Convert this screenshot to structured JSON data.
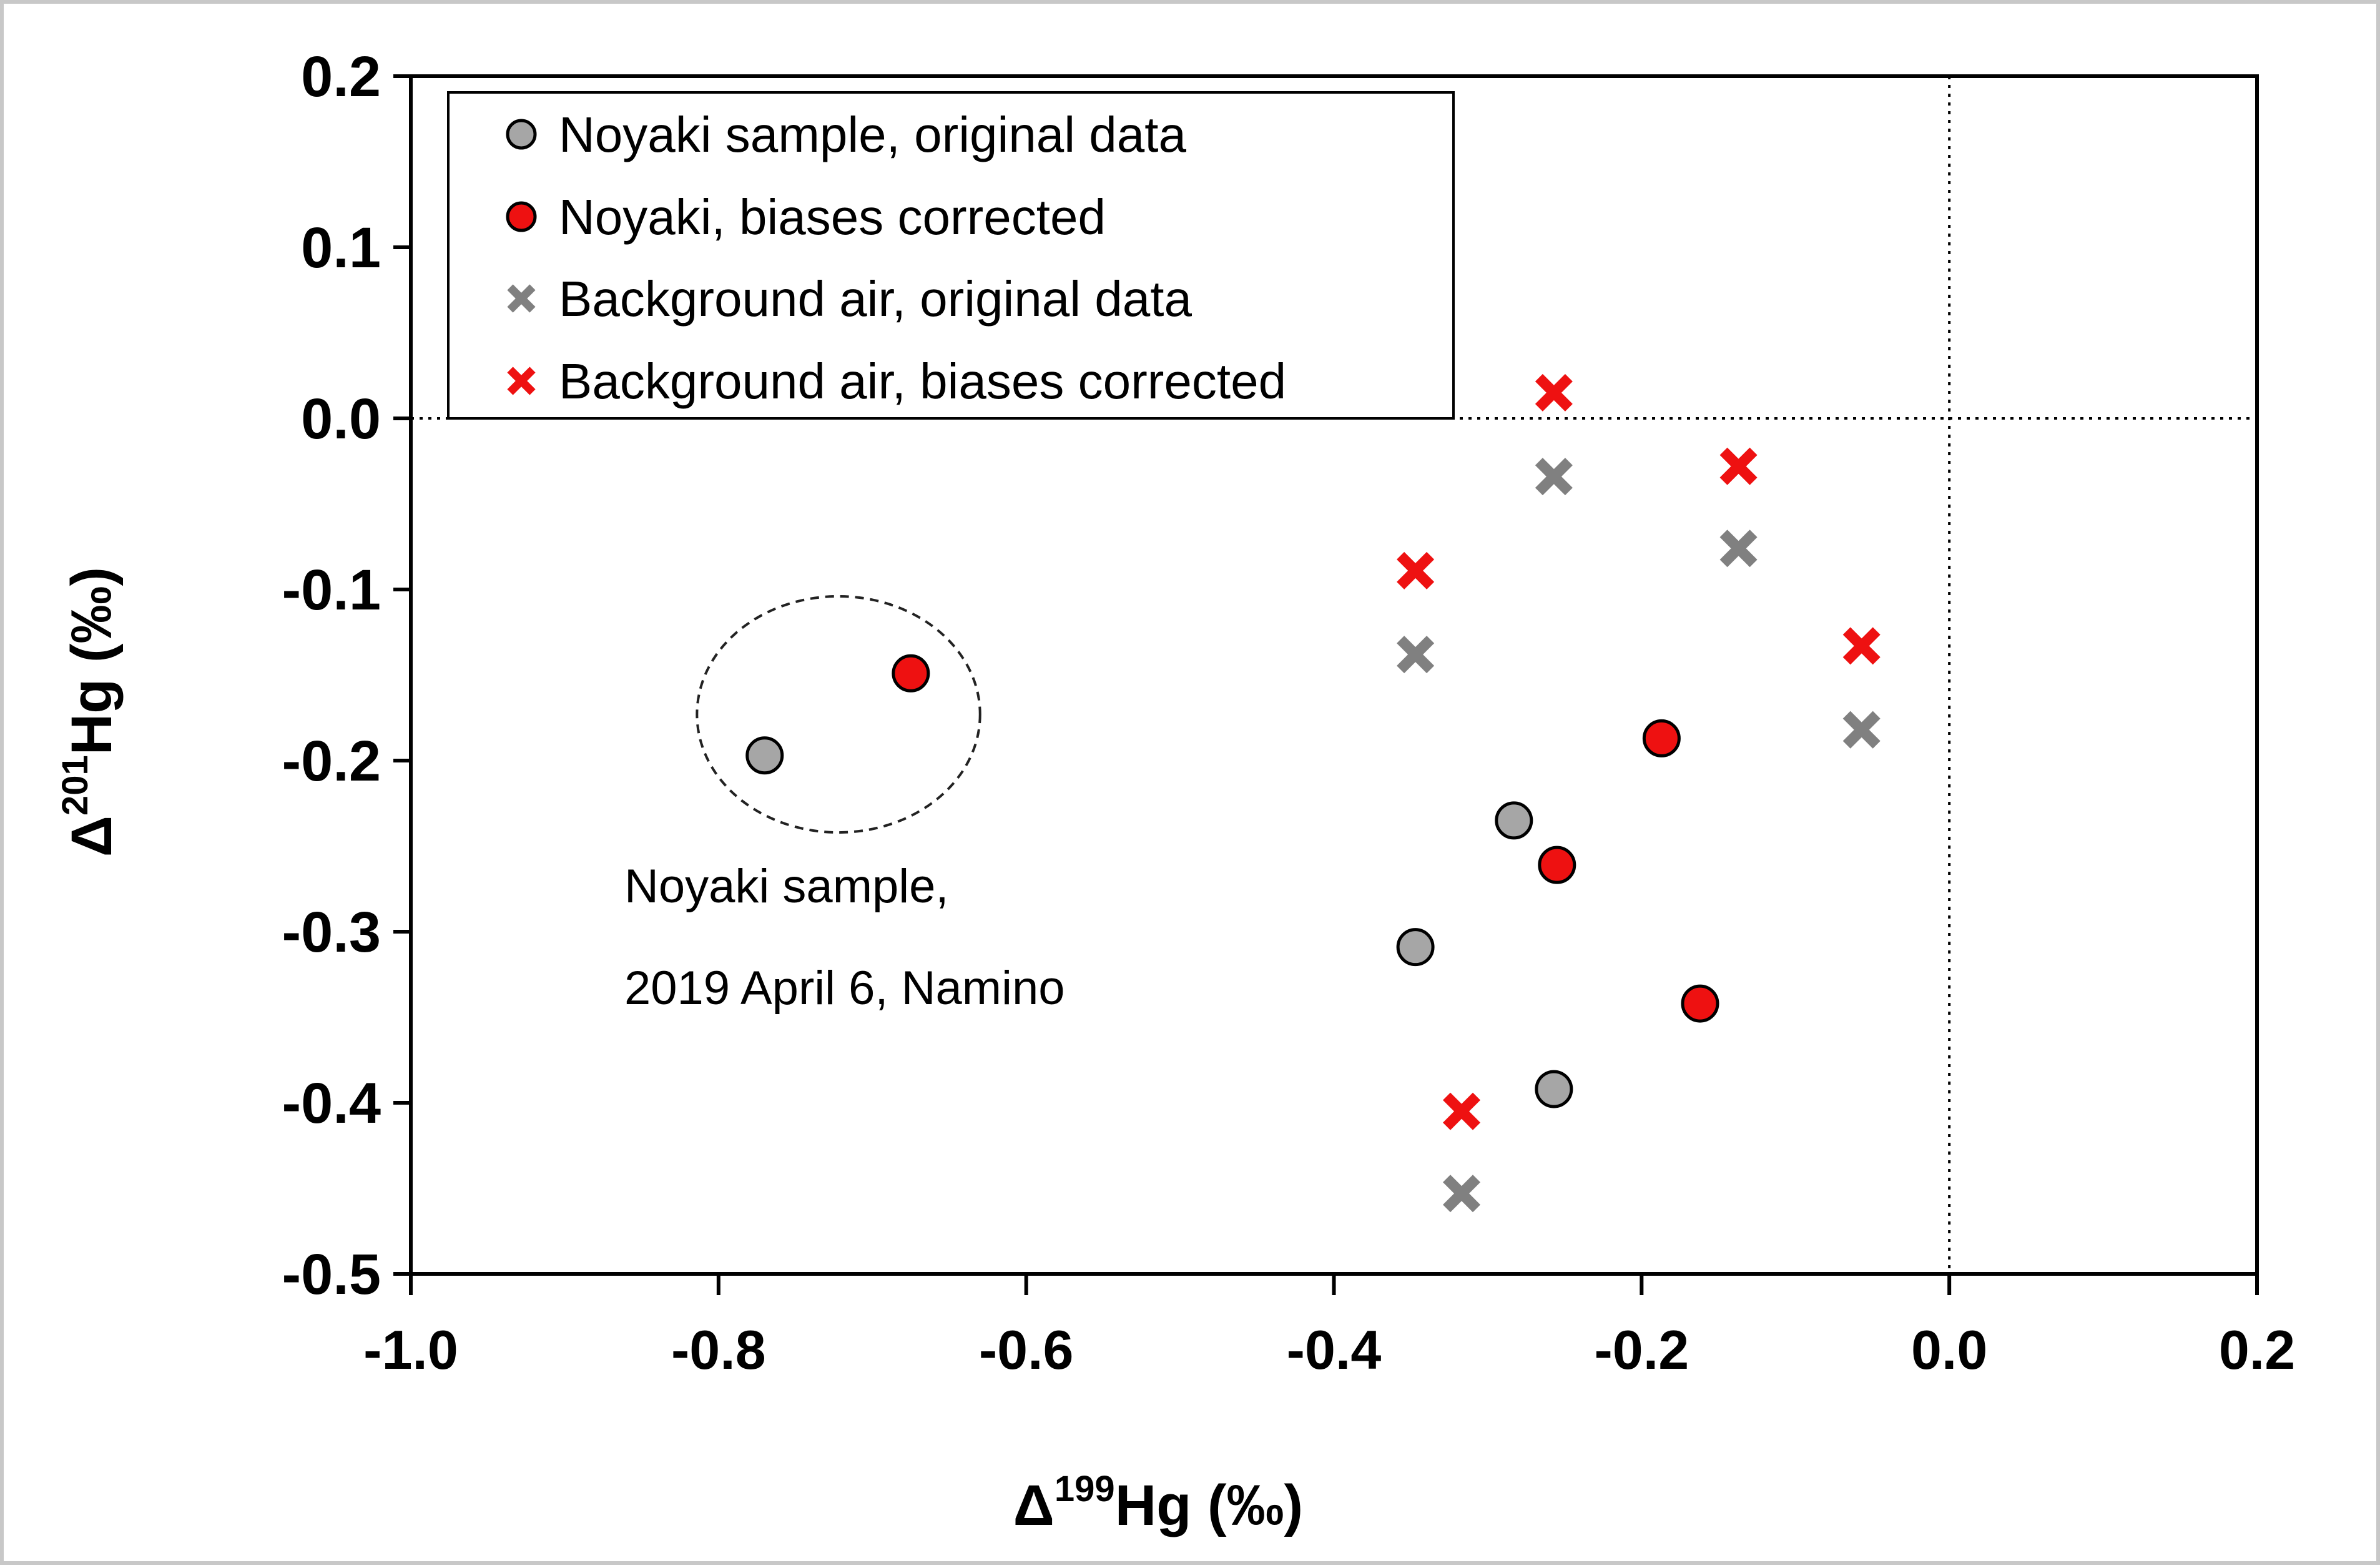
{
  "chart_data": {
    "type": "scatter",
    "title": "",
    "xlabel": {
      "prefix": "Δ",
      "superscript": "199",
      "main": "Hg (‰)"
    },
    "ylabel": {
      "prefix": "Δ",
      "superscript": "201",
      "main": "Hg (‰)"
    },
    "xlim": [
      -1.0,
      0.2
    ],
    "ylim": [
      -0.5,
      0.2
    ],
    "x_ticks": [
      -1.0,
      -0.8,
      -0.6,
      -0.4,
      -0.2,
      0.0,
      0.2
    ],
    "x_tick_labels": [
      "-1.0",
      "-0.8",
      "-0.6",
      "-0.4",
      "-0.2",
      "0.0",
      "0.2"
    ],
    "y_ticks": [
      0.2,
      0.1,
      0.0,
      -0.1,
      -0.2,
      -0.3,
      -0.4,
      -0.5
    ],
    "y_tick_labels": [
      "0.2",
      "0.1",
      "0.0",
      "-0.1",
      "-0.2",
      "-0.3",
      "-0.4",
      "-0.5"
    ],
    "reference_lines": {
      "x": 0.0,
      "y": 0.0,
      "style": "dotted"
    },
    "legend_position": "top-left",
    "series": [
      {
        "name": "Noyaki sample, original data",
        "marker": "circle",
        "color": "#a6a6a6",
        "points": [
          {
            "x": -0.77,
            "y": -0.197
          },
          {
            "x": -0.283,
            "y": -0.235
          },
          {
            "x": -0.347,
            "y": -0.309
          },
          {
            "x": -0.257,
            "y": -0.392
          }
        ]
      },
      {
        "name": "Noyaki, biases corrected",
        "marker": "circle",
        "color": "#ee1111",
        "points": [
          {
            "x": -0.675,
            "y": -0.149
          },
          {
            "x": -0.187,
            "y": -0.187
          },
          {
            "x": -0.255,
            "y": -0.261
          },
          {
            "x": -0.162,
            "y": -0.342
          }
        ]
      },
      {
        "name": "Background air, original data",
        "marker": "x",
        "color": "#808080",
        "points": [
          {
            "x": -0.257,
            "y": -0.034
          },
          {
            "x": -0.137,
            "y": -0.076
          },
          {
            "x": -0.347,
            "y": -0.138
          },
          {
            "x": -0.057,
            "y": -0.182
          },
          {
            "x": -0.317,
            "y": -0.453
          }
        ]
      },
      {
        "name": "Background air, biases corrected",
        "marker": "x",
        "color": "#ee1111",
        "points": [
          {
            "x": -0.257,
            "y": 0.015
          },
          {
            "x": -0.137,
            "y": -0.028
          },
          {
            "x": -0.347,
            "y": -0.089
          },
          {
            "x": -0.057,
            "y": -0.133
          },
          {
            "x": -0.317,
            "y": -0.405
          }
        ]
      }
    ],
    "annotation": {
      "lines": [
        "Noyaki sample,",
        "2019 April 6, Namino"
      ],
      "ellipse_center": {
        "x": -0.722,
        "y": -0.173
      },
      "ellipse_radii": {
        "x": 0.092,
        "y": 0.069
      }
    }
  },
  "colors": {
    "gray_circle": "#a6a6a6",
    "red": "#ee1111",
    "gray_x": "#808080"
  }
}
